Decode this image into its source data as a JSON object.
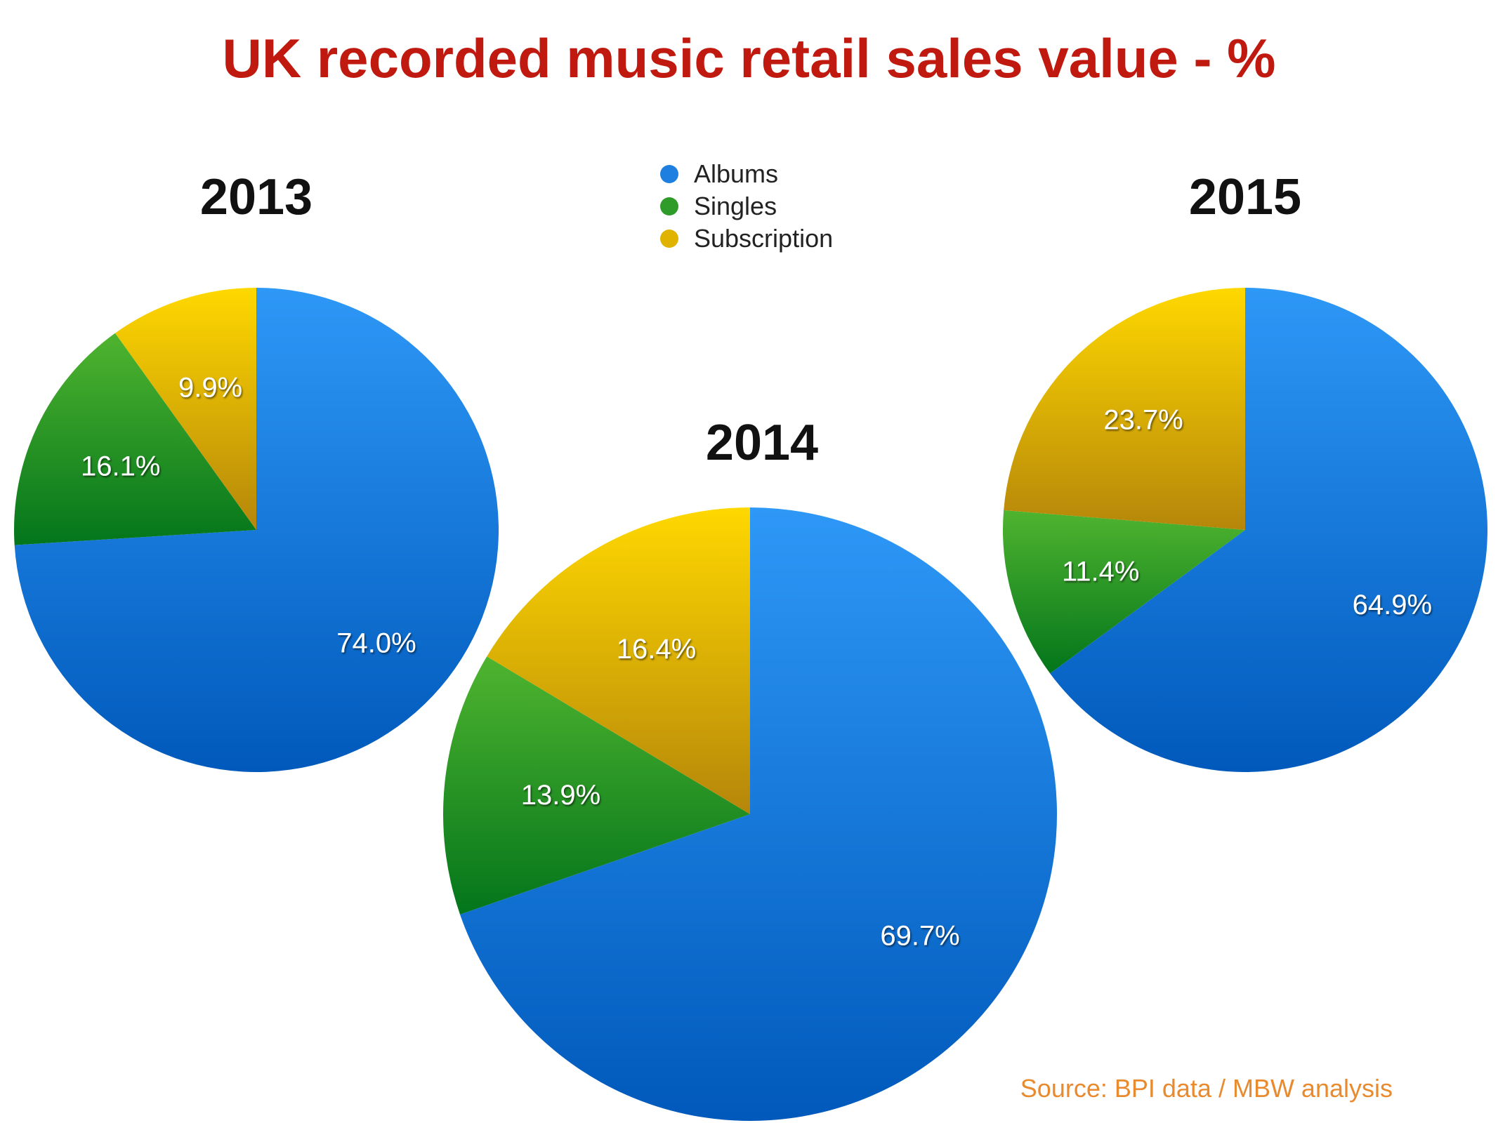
{
  "title": "UK recorded music retail sales value - %",
  "source": "Source: BPI data / MBW analysis",
  "legend": [
    {
      "name": "Albums",
      "color": "#1e7fe0"
    },
    {
      "name": "Singles",
      "color": "#2f9c2a"
    },
    {
      "name": "Subscription",
      "color": "#e0b300"
    }
  ],
  "chart_data": [
    {
      "type": "pie",
      "title": "2013",
      "categories": [
        "Albums",
        "Singles",
        "Subscription"
      ],
      "values": [
        74.0,
        16.1,
        9.9
      ],
      "labels": [
        "74.0%",
        "16.1%",
        "9.9%"
      ]
    },
    {
      "type": "pie",
      "title": "2014",
      "categories": [
        "Albums",
        "Singles",
        "Subscription"
      ],
      "values": [
        69.7,
        13.9,
        16.4
      ],
      "labels": [
        "69.7%",
        "13.9%",
        "16.4%"
      ]
    },
    {
      "type": "pie",
      "title": "2015",
      "categories": [
        "Albums",
        "Singles",
        "Subscription"
      ],
      "values": [
        64.9,
        11.4,
        23.7
      ],
      "labels": [
        "64.9%",
        "11.4%",
        "23.7%"
      ]
    }
  ]
}
